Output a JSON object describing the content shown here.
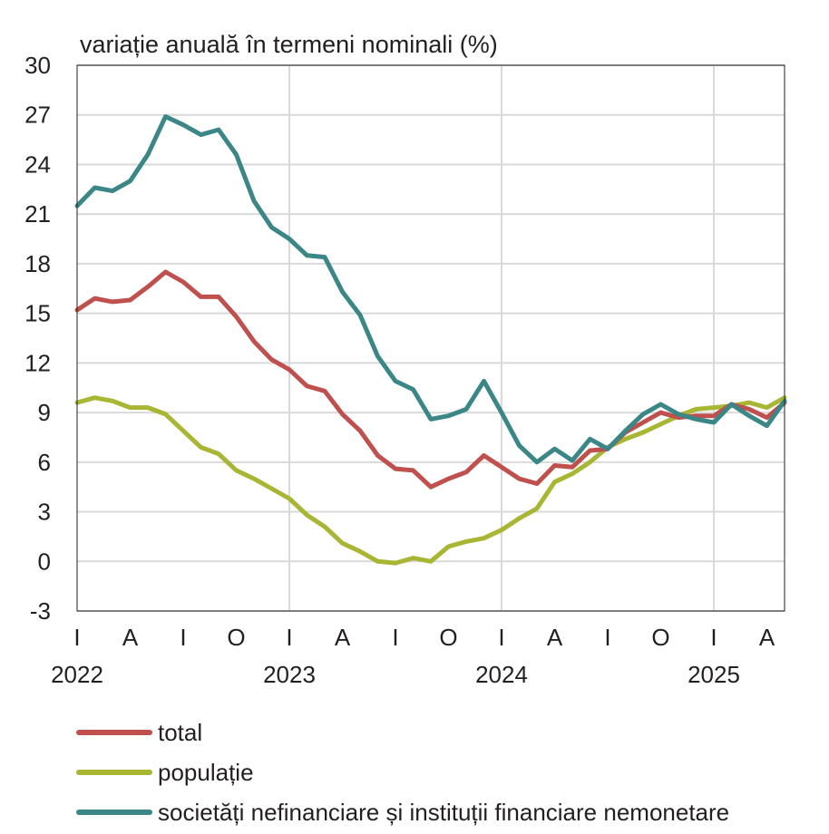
{
  "chart_data": {
    "type": "line",
    "ylabel": "variație anuală în termeni nominali (%)",
    "ylim": [
      -3,
      30
    ],
    "yticks": [
      30,
      27,
      24,
      21,
      18,
      15,
      12,
      9,
      6,
      3,
      0,
      -3
    ],
    "x_start": "2022-01",
    "x_tick_labels": [
      "I",
      "A",
      "I",
      "O",
      "I",
      "A",
      "I",
      "O",
      "I",
      "A",
      "I",
      "O",
      "I",
      "A"
    ],
    "year_labels": [
      "2022",
      "2023",
      "2024",
      "2025"
    ],
    "grid": true,
    "legend_position": "bottom",
    "colors": {
      "total": "#c0504d",
      "populatie": "#a8b634",
      "societati": "#3b8686"
    },
    "series": [
      {
        "name": "total",
        "values": [
          15.2,
          15.9,
          15.7,
          15.8,
          16.6,
          17.5,
          16.9,
          16.0,
          16.0,
          14.8,
          13.3,
          12.2,
          11.6,
          10.6,
          10.3,
          8.9,
          7.9,
          6.4,
          5.6,
          5.5,
          4.5,
          5.0,
          5.4,
          6.4,
          5.7,
          5.0,
          4.7,
          5.8,
          5.7,
          6.7,
          6.8,
          7.8,
          8.4,
          9.0,
          8.7,
          8.8,
          8.8,
          9.5,
          9.2,
          8.7,
          9.6
        ]
      },
      {
        "name": "populație",
        "values": [
          9.6,
          9.9,
          9.7,
          9.3,
          9.3,
          8.9,
          7.9,
          6.9,
          6.5,
          5.5,
          5.0,
          4.4,
          3.8,
          2.8,
          2.1,
          1.1,
          0.6,
          0.0,
          -0.1,
          0.2,
          0.0,
          0.9,
          1.2,
          1.4,
          1.9,
          2.6,
          3.2,
          4.8,
          5.3,
          6.0,
          6.9,
          7.4,
          7.8,
          8.3,
          8.8,
          9.2,
          9.3,
          9.4,
          9.6,
          9.3,
          9.9
        ]
      },
      {
        "name": "societăți nefinanciare și instituții financiare nemonetare",
        "values": [
          21.5,
          22.6,
          22.4,
          23.0,
          24.6,
          26.9,
          26.4,
          25.8,
          26.1,
          24.6,
          21.8,
          20.2,
          19.5,
          18.5,
          18.4,
          16.3,
          14.9,
          12.4,
          10.9,
          10.4,
          8.6,
          8.8,
          9.2,
          10.9,
          9.0,
          7.0,
          6.0,
          6.8,
          6.1,
          7.4,
          6.8,
          7.9,
          8.9,
          9.5,
          8.9,
          8.6,
          8.4,
          9.5,
          8.8,
          8.2,
          9.7
        ]
      }
    ]
  }
}
